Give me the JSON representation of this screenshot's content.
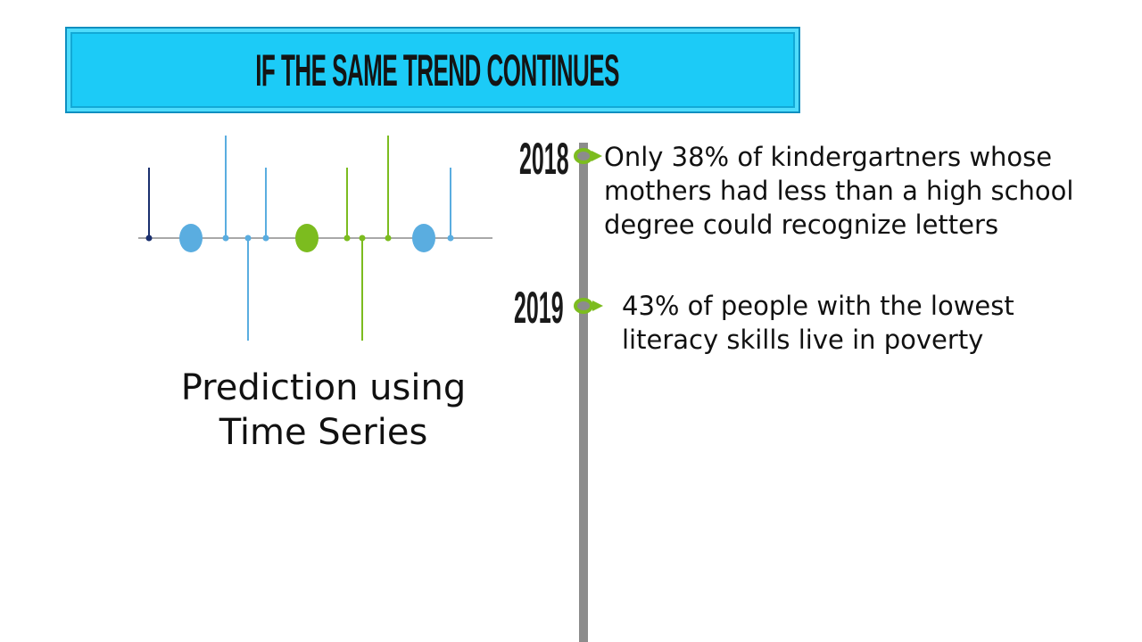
{
  "banner": {
    "title": "IF THE SAME TREND CONTINUES"
  },
  "graphic": {
    "caption_line1": "Prediction using",
    "caption_line2": "Time Series"
  },
  "timeline": {
    "events": [
      {
        "year": "2018",
        "lines": [
          "Only 38% of kindergartners whose",
          "mothers had less than a high school",
          "degree could recognize letters"
        ]
      },
      {
        "year": "2019",
        "lines": [
          "43% of people with the lowest",
          "literacy skills live in poverty"
        ]
      }
    ]
  },
  "colors": {
    "banner": "#1ccbf7",
    "accent_green": "#7cbc1f",
    "light_blue": "#5aade0",
    "navy": "#1a2f6e",
    "timeline_gray": "#8c8c8c"
  }
}
